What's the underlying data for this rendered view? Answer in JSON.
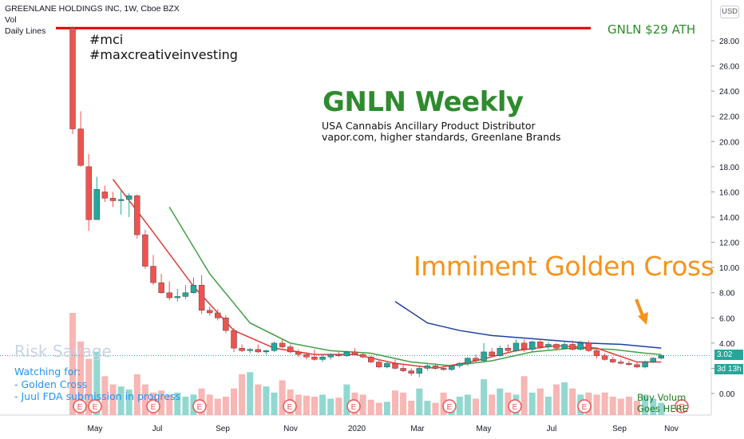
{
  "header": {
    "symbol_line": "GREENLANE HOLDINGS INC, 1W, Cboe BZX",
    "vol_label": "Vol",
    "lines_label": "Daily Lines"
  },
  "hashtags": [
    "#mci",
    "#maxcreativeinvesting"
  ],
  "title": "GNLN Weekly",
  "subtitle": [
    "USA Cannabis Ancillary Product Distributor",
    "vapor.com, higher standards, Greenlane Brands"
  ],
  "ath_label": "GNLN $29 ATH",
  "golden_cross_label": "Imminent Golden Cross",
  "watermark": "Risk Savage",
  "watching": [
    "Watching for:",
    "- Golden Cross",
    "- Juul FDA submission in progress"
  ],
  "buy_note": [
    "Buy Volum",
    "Goes HERE"
  ],
  "currency": "USD",
  "price_label": "3.02",
  "countdown_label": "3d 13h",
  "colors": {
    "up": "#26a69a",
    "down": "#ef5350",
    "ath_line": "#e00000",
    "ma_fast": "#e53935",
    "ma_mid": "#43a047",
    "ma_slow": "#1e40a0",
    "arrow": "#f7931a"
  },
  "chart_data": {
    "type": "candlestick",
    "interval": "1W",
    "y_ticks": [
      "28.00",
      "26.00",
      "24.00",
      "22.00",
      "20.00",
      "18.00",
      "16.00",
      "14.00",
      "12.00",
      "10.00",
      "8.00",
      "6.00",
      "4.00",
      "2.00",
      "0.00"
    ],
    "x_ticks": [
      "May",
      "Jul",
      "Sep",
      "Nov",
      "2020",
      "Mar",
      "May",
      "Jul",
      "Sep",
      "Nov"
    ],
    "ylim": [
      -2,
      29
    ],
    "ath_price": 29,
    "last_price": 3.02,
    "earnings_markers": 10,
    "candles": [
      [
        29,
        29,
        20.6,
        21
      ],
      [
        21,
        22.4,
        18,
        18.1
      ],
      [
        18,
        19,
        12.9,
        13.8
      ],
      [
        13.8,
        17.2,
        13.8,
        16.2
      ],
      [
        16,
        16.5,
        15.2,
        15.5
      ],
      [
        15.5,
        16,
        14.8,
        15.3
      ],
      [
        15.3,
        16.2,
        14.2,
        15.4
      ],
      [
        15.4,
        15.9,
        14,
        15.7
      ],
      [
        15.7,
        15.8,
        12.3,
        12.6
      ],
      [
        12.6,
        13,
        9.9,
        10.1
      ],
      [
        10.1,
        11,
        8.6,
        8.8
      ],
      [
        8.8,
        9.5,
        7.9,
        8.0
      ],
      [
        8.0,
        8.9,
        7.4,
        7.6
      ],
      [
        7.6,
        8.3,
        7.3,
        7.7
      ],
      [
        7.7,
        8.6,
        7.5,
        8.0
      ],
      [
        8.0,
        9.2,
        7.9,
        8.6
      ],
      [
        8.6,
        9.4,
        6.3,
        6.6
      ],
      [
        6.6,
        6.9,
        6.2,
        6.4
      ],
      [
        6.4,
        6.7,
        5.8,
        6.0
      ],
      [
        6.0,
        6.2,
        4.8,
        5.0
      ],
      [
        5.0,
        5.2,
        3.3,
        3.6
      ],
      [
        3.6,
        3.9,
        3.3,
        3.4
      ],
      [
        3.4,
        3.6,
        3.2,
        3.5
      ],
      [
        3.5,
        3.9,
        3.2,
        3.3
      ],
      [
        3.3,
        3.5,
        3.1,
        3.4
      ],
      [
        3.4,
        4.1,
        3.3,
        4.0
      ],
      [
        4.0,
        4.3,
        3.6,
        3.7
      ],
      [
        3.7,
        3.9,
        3.2,
        3.3
      ],
      [
        3.3,
        3.5,
        2.9,
        3.1
      ],
      [
        3.1,
        3.3,
        2.7,
        2.9
      ],
      [
        2.9,
        3.5,
        2.6,
        2.7
      ],
      [
        2.7,
        3.1,
        2.5,
        2.9
      ],
      [
        2.9,
        3.2,
        2.7,
        3.1
      ],
      [
        3.1,
        3.3,
        2.9,
        3.0
      ],
      [
        3.0,
        3.4,
        2.9,
        3.3
      ],
      [
        3.3,
        3.6,
        3.0,
        3.1
      ],
      [
        3.1,
        3.2,
        2.8,
        2.9
      ],
      [
        2.9,
        3.0,
        2.4,
        2.5
      ],
      [
        2.5,
        2.7,
        2.0,
        2.1
      ],
      [
        2.1,
        2.6,
        2.0,
        2.4
      ],
      [
        2.4,
        2.7,
        1.9,
        2.0
      ],
      [
        2.0,
        2.3,
        1.7,
        1.8
      ],
      [
        1.8,
        2.0,
        1.4,
        1.6
      ],
      [
        1.6,
        2.2,
        1.3,
        2.0
      ],
      [
        2.0,
        2.4,
        1.8,
        2.2
      ],
      [
        2.2,
        2.4,
        1.9,
        2.0
      ],
      [
        2.0,
        2.2,
        1.8,
        1.9
      ],
      [
        1.9,
        2.3,
        1.8,
        2.2
      ],
      [
        2.2,
        2.5,
        2.0,
        2.4
      ],
      [
        2.4,
        2.9,
        2.2,
        2.8
      ],
      [
        2.8,
        3.1,
        2.5,
        2.6
      ],
      [
        2.6,
        4.0,
        2.5,
        3.3
      ],
      [
        3.3,
        3.6,
        2.9,
        3.0
      ],
      [
        3.0,
        3.8,
        2.9,
        3.6
      ],
      [
        3.6,
        3.9,
        3.3,
        3.4
      ],
      [
        3.4,
        4.3,
        3.3,
        4.0
      ],
      [
        4.0,
        4.3,
        3.3,
        3.5
      ],
      [
        3.5,
        4.2,
        3.3,
        4.1
      ],
      [
        4.1,
        4.3,
        3.5,
        3.7
      ],
      [
        3.7,
        4.1,
        3.5,
        3.9
      ],
      [
        3.9,
        4.0,
        3.4,
        3.6
      ],
      [
        3.6,
        4.1,
        3.5,
        3.9
      ],
      [
        3.9,
        4.2,
        3.4,
        3.5
      ],
      [
        3.5,
        4.2,
        3.4,
        4.0
      ],
      [
        4.0,
        4.2,
        3.3,
        3.4
      ],
      [
        3.4,
        3.6,
        2.8,
        3.0
      ],
      [
        3.0,
        3.2,
        2.6,
        2.7
      ],
      [
        2.7,
        2.9,
        2.4,
        2.5
      ],
      [
        2.5,
        2.7,
        2.3,
        2.4
      ],
      [
        2.4,
        2.6,
        2.2,
        2.3
      ],
      [
        2.3,
        2.5,
        2.0,
        2.1
      ],
      [
        2.1,
        2.6,
        2.0,
        2.5
      ],
      [
        2.5,
        2.9,
        2.4,
        2.8
      ],
      [
        2.8,
        3.1,
        2.7,
        3.02
      ]
    ],
    "volume": [
      1.0,
      0.72,
      0.55,
      0.62,
      0.38,
      0.3,
      0.28,
      0.25,
      0.4,
      0.3,
      0.22,
      0.24,
      0.2,
      0.22,
      0.18,
      0.2,
      0.26,
      0.2,
      0.16,
      0.18,
      0.26,
      0.4,
      0.42,
      0.3,
      0.28,
      0.22,
      0.34,
      0.25,
      0.2,
      0.19,
      0.18,
      0.2,
      0.16,
      0.17,
      0.3,
      0.22,
      0.2,
      0.15,
      0.12,
      0.13,
      0.24,
      0.22,
      0.14,
      0.26,
      0.14,
      0.12,
      0.22,
      0.12,
      0.18,
      0.2,
      0.16,
      0.35,
      0.2,
      0.26,
      0.22,
      0.2,
      0.38,
      0.22,
      0.26,
      0.18,
      0.3,
      0.32,
      0.26,
      0.2,
      0.22,
      0.2,
      0.22,
      0.18,
      0.16,
      0.18,
      0.14,
      0.2,
      0.16,
      0.12
    ],
    "ma_fast": [
      [
        5,
        17.0
      ],
      [
        10,
        12.8
      ],
      [
        15,
        8.5
      ],
      [
        20,
        5.0
      ],
      [
        25,
        3.6
      ],
      [
        30,
        3.1
      ],
      [
        35,
        3.1
      ],
      [
        40,
        2.4
      ],
      [
        45,
        2.0
      ],
      [
        50,
        2.6
      ],
      [
        55,
        3.4
      ],
      [
        60,
        3.8
      ],
      [
        65,
        3.6
      ],
      [
        70,
        2.5
      ],
      [
        73,
        2.5
      ]
    ],
    "ma_mid": [
      [
        12,
        14.8
      ],
      [
        17,
        9.5
      ],
      [
        22,
        5.6
      ],
      [
        27,
        4.0
      ],
      [
        32,
        3.4
      ],
      [
        37,
        3.2
      ],
      [
        42,
        2.5
      ],
      [
        47,
        2.2
      ],
      [
        52,
        2.6
      ],
      [
        57,
        3.3
      ],
      [
        62,
        3.6
      ],
      [
        67,
        3.5
      ],
      [
        71,
        3.2
      ],
      [
        73,
        3.1
      ]
    ],
    "ma_slow": [
      [
        40,
        7.3
      ],
      [
        44,
        5.6
      ],
      [
        48,
        5.0
      ],
      [
        52,
        4.6
      ],
      [
        56,
        4.4
      ],
      [
        60,
        4.2
      ],
      [
        64,
        4.0
      ],
      [
        68,
        3.9
      ],
      [
        73,
        3.6
      ]
    ]
  }
}
